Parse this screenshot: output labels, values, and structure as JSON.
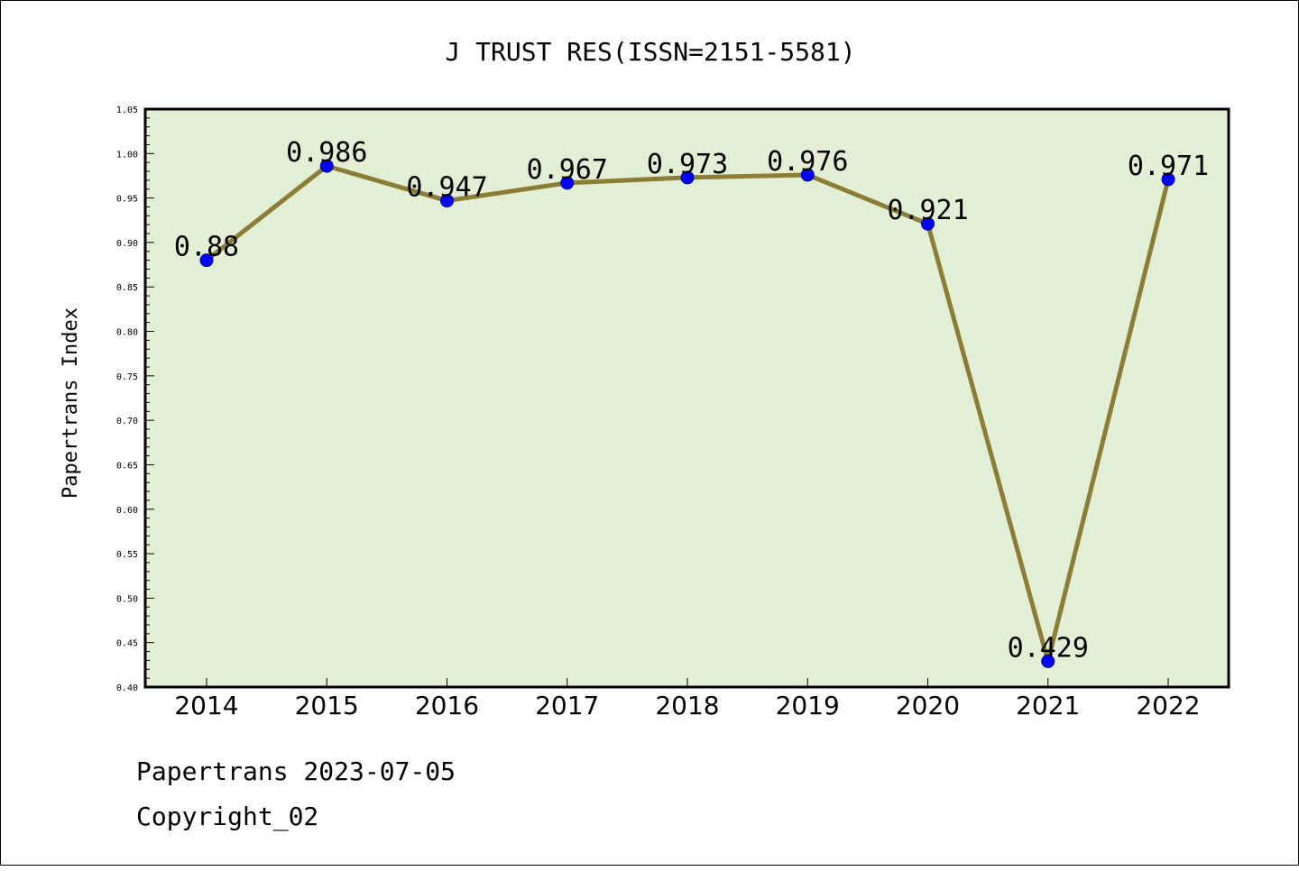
{
  "chart_data": {
    "type": "line",
    "title": "J TRUST RES(ISSN=2151-5581)",
    "xlabel": "",
    "ylabel": "Papertrans Index",
    "categories": [
      "2014",
      "2015",
      "2016",
      "2017",
      "2018",
      "2019",
      "2020",
      "2021",
      "2022"
    ],
    "values": [
      0.88,
      0.986,
      0.947,
      0.967,
      0.973,
      0.976,
      0.921,
      0.429,
      0.971
    ],
    "data_labels": [
      "0.88",
      "0.986",
      "0.947",
      "0.967",
      "0.973",
      "0.976",
      "0.921",
      "0.429",
      "0.971"
    ],
    "ylim": [
      0.4,
      1.05
    ],
    "yticks": [
      "0.40",
      "0.45",
      "0.50",
      "0.55",
      "0.60",
      "0.65",
      "0.70",
      "0.75",
      "0.80",
      "0.85",
      "0.90",
      "0.95",
      "1.00",
      "1.05"
    ],
    "grid": false,
    "colors": {
      "plot_background": "#e2efd5",
      "line": "#8b7d35",
      "marker": "#0000ff"
    }
  },
  "footer": {
    "line1": "Papertrans 2023-07-05",
    "line2": "Copyright_02"
  }
}
